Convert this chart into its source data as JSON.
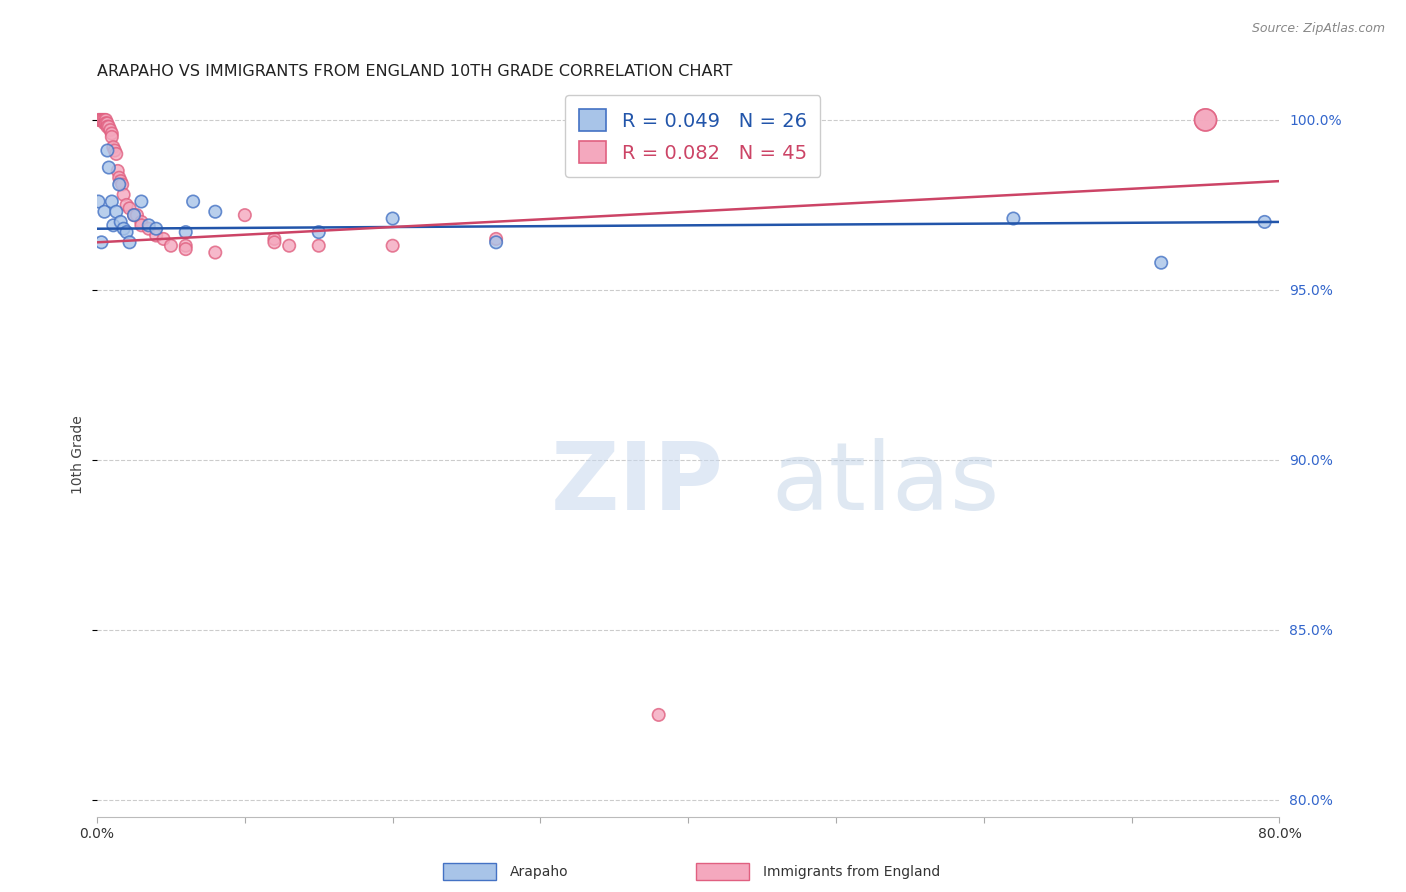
{
  "title": "ARAPAHO VS IMMIGRANTS FROM ENGLAND 10TH GRADE CORRELATION CHART",
  "source": "Source: ZipAtlas.com",
  "ylabel": "10th Grade",
  "xlim": [
    0.0,
    0.8
  ],
  "ylim": [
    0.795,
    1.008
  ],
  "xticks": [
    0.0,
    0.1,
    0.2,
    0.3,
    0.4,
    0.5,
    0.6,
    0.7,
    0.8
  ],
  "yticks": [
    0.8,
    0.85,
    0.9,
    0.95,
    1.0
  ],
  "yticklabels": [
    "80.0%",
    "85.0%",
    "90.0%",
    "95.0%",
    "100.0%"
  ],
  "blue_color": "#a8c4e8",
  "pink_color": "#f4a8be",
  "blue_edge_color": "#4472c4",
  "pink_edge_color": "#e06080",
  "blue_line_color": "#2255aa",
  "pink_line_color": "#cc4466",
  "right_tick_color": "#3366cc",
  "grid_color": "#cccccc",
  "background_color": "#ffffff",
  "title_fontsize": 11.5,
  "tick_fontsize": 10,
  "legend_fontsize": 14,
  "watermark_zip": "ZIP",
  "watermark_atlas": "atlas",
  "blue_points": [
    [
      0.001,
      0.976
    ],
    [
      0.003,
      0.964
    ],
    [
      0.005,
      0.973
    ],
    [
      0.007,
      0.991
    ],
    [
      0.008,
      0.986
    ],
    [
      0.01,
      0.976
    ],
    [
      0.011,
      0.969
    ],
    [
      0.013,
      0.973
    ],
    [
      0.015,
      0.981
    ],
    [
      0.016,
      0.97
    ],
    [
      0.018,
      0.968
    ],
    [
      0.02,
      0.967
    ],
    [
      0.022,
      0.964
    ],
    [
      0.025,
      0.972
    ],
    [
      0.03,
      0.976
    ],
    [
      0.035,
      0.969
    ],
    [
      0.04,
      0.968
    ],
    [
      0.06,
      0.967
    ],
    [
      0.065,
      0.976
    ],
    [
      0.08,
      0.973
    ],
    [
      0.15,
      0.967
    ],
    [
      0.2,
      0.971
    ],
    [
      0.27,
      0.964
    ],
    [
      0.62,
      0.971
    ],
    [
      0.72,
      0.958
    ],
    [
      0.79,
      0.97
    ]
  ],
  "pink_points": [
    [
      0.001,
      1.0
    ],
    [
      0.002,
      1.0
    ],
    [
      0.003,
      1.0
    ],
    [
      0.004,
      1.0
    ],
    [
      0.005,
      1.0
    ],
    [
      0.005,
      0.999
    ],
    [
      0.006,
      1.0
    ],
    [
      0.006,
      0.999
    ],
    [
      0.007,
      0.999
    ],
    [
      0.007,
      0.998
    ],
    [
      0.008,
      0.998
    ],
    [
      0.009,
      0.997
    ],
    [
      0.01,
      0.996
    ],
    [
      0.01,
      0.995
    ],
    [
      0.011,
      0.992
    ],
    [
      0.012,
      0.991
    ],
    [
      0.013,
      0.99
    ],
    [
      0.014,
      0.985
    ],
    [
      0.015,
      0.983
    ],
    [
      0.016,
      0.982
    ],
    [
      0.017,
      0.981
    ],
    [
      0.018,
      0.978
    ],
    [
      0.02,
      0.975
    ],
    [
      0.022,
      0.974
    ],
    [
      0.025,
      0.972
    ],
    [
      0.027,
      0.972
    ],
    [
      0.03,
      0.97
    ],
    [
      0.03,
      0.969
    ],
    [
      0.035,
      0.968
    ],
    [
      0.04,
      0.966
    ],
    [
      0.045,
      0.965
    ],
    [
      0.05,
      0.963
    ],
    [
      0.06,
      0.963
    ],
    [
      0.06,
      0.962
    ],
    [
      0.08,
      0.961
    ],
    [
      0.1,
      0.972
    ],
    [
      0.12,
      0.965
    ],
    [
      0.12,
      0.964
    ],
    [
      0.13,
      0.963
    ],
    [
      0.15,
      0.963
    ],
    [
      0.2,
      0.963
    ],
    [
      0.27,
      0.965
    ],
    [
      0.38,
      0.825
    ],
    [
      0.75,
      1.0
    ],
    [
      0.75,
      1.0
    ]
  ],
  "pink_sizes_special": [
    [
      43,
      250
    ],
    [
      44,
      250
    ]
  ],
  "blue_trend": [
    0.0,
    0.8,
    0.968,
    0.97
  ],
  "pink_trend": [
    0.0,
    0.8,
    0.964,
    0.982
  ]
}
